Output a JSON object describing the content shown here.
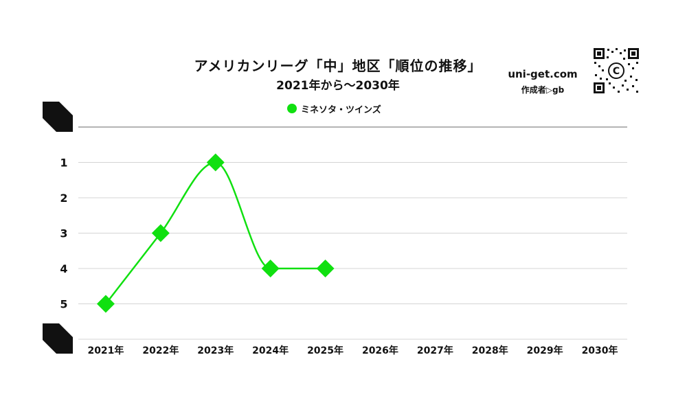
{
  "header": {
    "title": "アメリカンリーグ「中」地区「順位の推移」",
    "subtitle": "2021年から〜2030年",
    "site": "uni-get.com",
    "author": "作成者▷gb",
    "qr_icon": "qr-code-icon"
  },
  "chart_data": {
    "type": "line",
    "title": "アメリカンリーグ「中」地区「順位の推移」",
    "subtitle": "2021年から〜2030年",
    "xlabel": "",
    "ylabel": "",
    "categories": [
      "2021年",
      "2022年",
      "2023年",
      "2024年",
      "2025年",
      "2026年",
      "2027年",
      "2028年",
      "2029年",
      "2030年"
    ],
    "y_ticks": [
      "1",
      "2",
      "3",
      "4",
      "5"
    ],
    "ylim": [
      0,
      6
    ],
    "y_reversed": true,
    "grid": true,
    "legend_position": "top-center",
    "series": [
      {
        "name": "ミネソタ・ツインズ",
        "color": "#10e010",
        "marker": "diamond",
        "values": [
          5,
          3,
          1,
          4,
          4,
          null,
          null,
          null,
          null,
          null
        ]
      }
    ]
  }
}
